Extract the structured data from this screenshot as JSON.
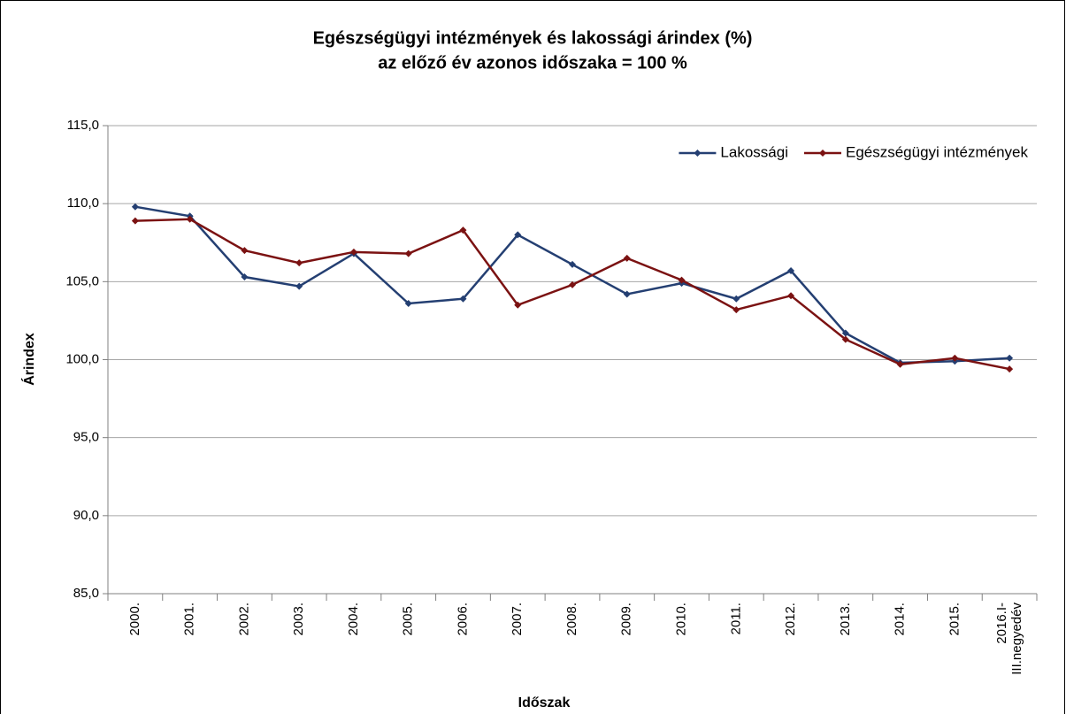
{
  "chart_data": {
    "type": "line",
    "title": "Egészségügyi intézmények és lakossági árindex (%)",
    "subtitle": "az előző év azonos időszaka = 100 %",
    "x_label": "Időszak",
    "y_label": "Árindex",
    "categories": [
      "2000.",
      "2001.",
      "2002.",
      "2003.",
      "2004.",
      "2005.",
      "2006.",
      "2007.",
      "2008.",
      "2009.",
      "2010.",
      "2011.",
      "2012.",
      "2013.",
      "2014.",
      "2015.",
      "2016.I-III.negyedév"
    ],
    "series": [
      {
        "name": "Lakossági",
        "color": "#243f72",
        "values": [
          109.8,
          109.2,
          105.3,
          104.7,
          106.8,
          103.6,
          103.9,
          108.0,
          106.1,
          104.2,
          104.9,
          103.9,
          105.7,
          101.7,
          99.8,
          99.9,
          100.1
        ]
      },
      {
        "name": "Egészségügyi intézmények",
        "color": "#7b1212",
        "values": [
          108.9,
          109.0,
          107.0,
          106.2,
          106.9,
          106.8,
          108.3,
          103.5,
          104.8,
          106.5,
          105.1,
          103.2,
          104.1,
          101.3,
          99.7,
          100.1,
          99.4
        ]
      }
    ],
    "ylim": [
      85,
      115
    ],
    "yticks": [
      {
        "value": 85,
        "label": "85,0"
      },
      {
        "value": 90,
        "label": "90,0"
      },
      {
        "value": 95,
        "label": "95,0"
      },
      {
        "value": 100,
        "label": "100,0"
      },
      {
        "value": 105,
        "label": "105,0"
      },
      {
        "value": 110,
        "label": "110,0"
      },
      {
        "value": 115,
        "label": "115,0"
      }
    ],
    "grid": true,
    "legend": "top-right"
  }
}
